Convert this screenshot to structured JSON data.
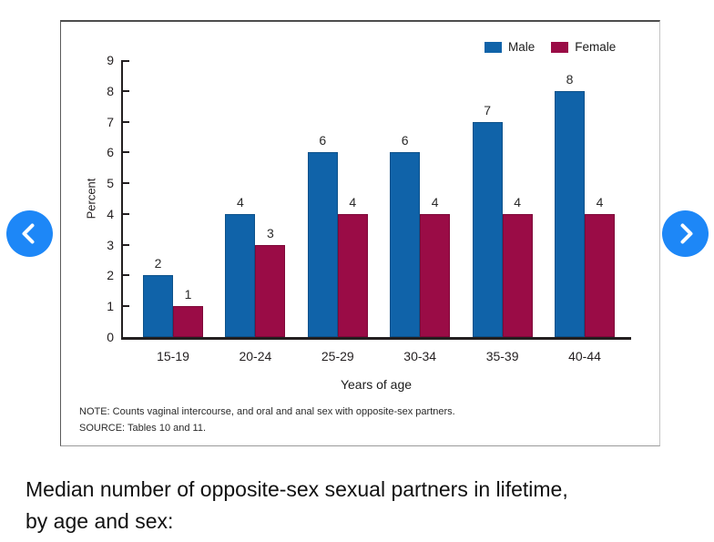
{
  "chart_data": {
    "type": "bar",
    "categories": [
      "15-19",
      "20-24",
      "25-29",
      "30-34",
      "35-39",
      "40-44"
    ],
    "series": [
      {
        "name": "Male",
        "color": "#1063a9",
        "values": [
          2,
          4,
          6,
          6,
          7,
          8
        ]
      },
      {
        "name": "Female",
        "color": "#9a0c46",
        "values": [
          1,
          3,
          4,
          4,
          4,
          4
        ]
      }
    ],
    "title": "",
    "xlabel": "Years of age",
    "ylabel": "Percent",
    "ylim": [
      0,
      9
    ],
    "ytick_step": 1,
    "grid": false,
    "legend_position": "top-right",
    "value_labels": true
  },
  "chart_notes": {
    "note": "NOTE: Counts vaginal intercourse, and oral and anal sex with opposite-sex partners.",
    "source": "SOURCE: Tables 10 and 11."
  },
  "caption": {
    "line1": "Median number of opposite-sex sexual partners in lifetime,",
    "line2": "by age and sex:"
  },
  "nav": {
    "button_color": "#1d87f7",
    "chevron_color": "#ffffff"
  }
}
